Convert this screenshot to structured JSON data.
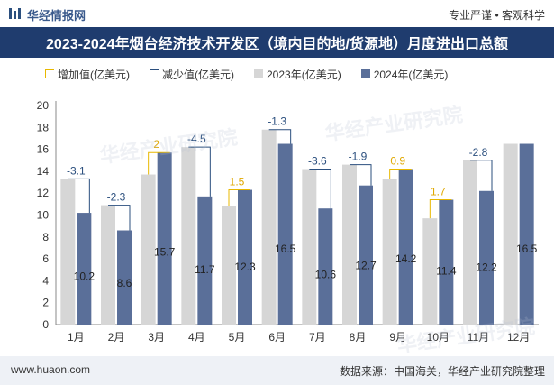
{
  "header": {
    "brand": "华经情报网",
    "tagline": "专业严谨 • 客观科学"
  },
  "title": "2023-2024年烟台经济技术开发区（境内目的地/货源地）月度进出口总额",
  "footer": {
    "site": "www.huaon.com",
    "source": "数据来源：中国海关，华经产业研究院整理"
  },
  "watermarks": [
    "华经产业研究院",
    "华经产业研究院",
    "华经产业研究院"
  ],
  "colors": {
    "bar_2023": "#d6d6d6",
    "bar_2024": "#5a6f99",
    "increase": "#e8b800",
    "decrease": "#2b4f7e",
    "title_bg": "#1f3c6e"
  },
  "chart_data": {
    "type": "bar",
    "legend": {
      "increase": "增加值(亿美元)",
      "decrease": "减少值(亿美元)",
      "s2023": "2023年(亿美元)",
      "s2024": "2024年(亿美元)"
    },
    "categories": [
      "1月",
      "2月",
      "3月",
      "4月",
      "5月",
      "6月",
      "7月",
      "8月",
      "9月",
      "10月",
      "11月",
      "12月"
    ],
    "series": [
      {
        "name": "2023年(亿美元)",
        "values": [
          13.3,
          10.9,
          13.7,
          16.2,
          10.8,
          17.8,
          14.2,
          14.6,
          13.3,
          9.7,
          15.0,
          16.5
        ]
      },
      {
        "name": "2024年(亿美元)",
        "values": [
          10.2,
          8.6,
          15.7,
          11.7,
          12.3,
          16.5,
          10.6,
          12.7,
          14.2,
          11.4,
          12.2,
          16.5
        ]
      }
    ],
    "diff_labels": [
      "-3.1",
      "-2.3",
      "2",
      "-4.5",
      "1.5",
      "-1.3",
      "-3.6",
      "-1.9",
      "0.9",
      "1.7",
      "-2.8",
      ""
    ],
    "value_labels": [
      "10.2",
      "8.6",
      "15.7",
      "11.7",
      "12.3",
      "16.5",
      "10.6",
      "12.7",
      "14.2",
      "11.4",
      "12.2",
      "16.5"
    ],
    "yticks": [
      "0",
      "2",
      "4",
      "6",
      "8",
      "10",
      "12",
      "14",
      "16",
      "18",
      "20"
    ],
    "ylim": [
      0,
      20
    ],
    "grid": false,
    "legend_position": "top-left"
  }
}
